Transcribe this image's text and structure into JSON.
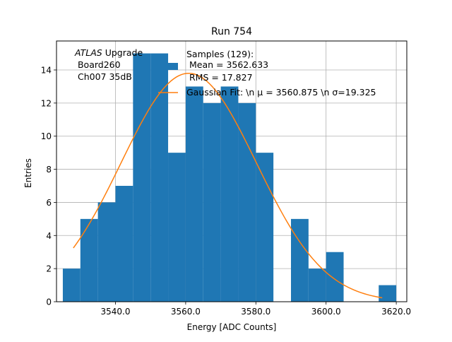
{
  "chart_data": {
    "type": "bar",
    "title": "Run 754",
    "xlabel": "Energy [ADC Counts]",
    "ylabel": "Entries",
    "xlim": [
      3523.2,
      3623.0
    ],
    "ylim": [
      0,
      15.75
    ],
    "xticks": [
      3540.0,
      3560.0,
      3580.0,
      3600.0,
      3620.0
    ],
    "xtick_labels": [
      "3540.0",
      "3560.0",
      "3580.0",
      "3600.0",
      "3620.0"
    ],
    "yticks": [
      0,
      2,
      4,
      6,
      8,
      10,
      12,
      14
    ],
    "ytick_labels": [
      "0",
      "2",
      "4",
      "6",
      "8",
      "10",
      "12",
      "14"
    ],
    "grid": true,
    "bin_width": 5,
    "bins": [
      {
        "x0": 3525,
        "count": 2
      },
      {
        "x0": 3530,
        "count": 5
      },
      {
        "x0": 3535,
        "count": 6
      },
      {
        "x0": 3540,
        "count": 7
      },
      {
        "x0": 3545,
        "count": 15
      },
      {
        "x0": 3550,
        "count": 15
      },
      {
        "x0": 3555,
        "count": 9
      },
      {
        "x0": 3560,
        "count": 13
      },
      {
        "x0": 3565,
        "count": 12
      },
      {
        "x0": 3570,
        "count": 13
      },
      {
        "x0": 3575,
        "count": 12
      },
      {
        "x0": 3580,
        "count": 9
      },
      {
        "x0": 3585,
        "count": 0
      },
      {
        "x0": 3590,
        "count": 5
      },
      {
        "x0": 3595,
        "count": 2
      },
      {
        "x0": 3600,
        "count": 3
      },
      {
        "x0": 3605,
        "count": 0
      },
      {
        "x0": 3610,
        "count": 0
      },
      {
        "x0": 3615,
        "count": 1
      }
    ],
    "fit": {
      "amplitude": 13.8,
      "mean": 3560.875,
      "sigma": 19.325,
      "x_range": [
        3528,
        3616
      ]
    },
    "series_colors": {
      "histogram": "#1f77b4",
      "fit": "#ff7f0e"
    },
    "legend": {
      "placement": "top-right",
      "hist_entry_lines": [
        "Samples (129):",
        " Mean = 3562.633",
        " RMS = 17.827"
      ],
      "fit_entry_label": "Gaussian Fit: \\n μ = 3560.875 \\n σ=19.325"
    },
    "annotation_lines": [
      "ATLAS Upgrade",
      " Board260",
      " Ch007 35dB"
    ]
  }
}
